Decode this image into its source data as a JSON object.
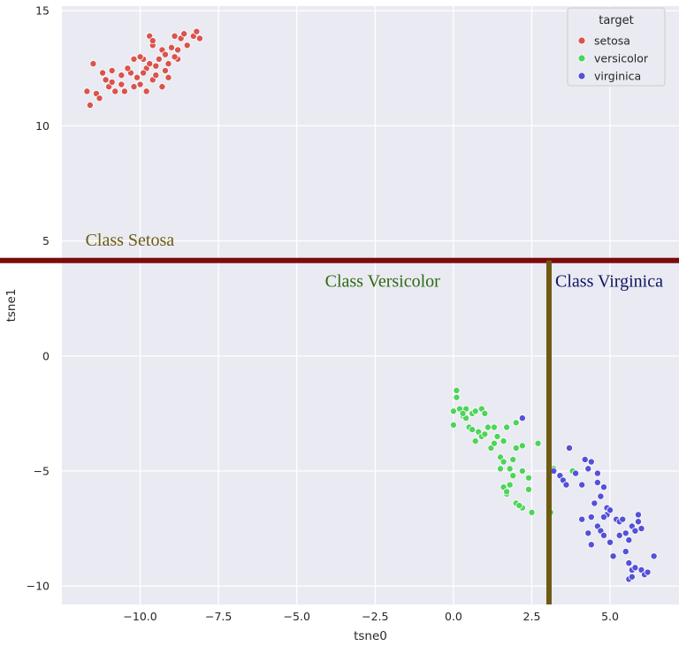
{
  "chart_data": {
    "type": "scatter",
    "xlabel": "tsne0",
    "ylabel": "tsne1",
    "xlim": [
      -12.5,
      7.2
    ],
    "ylim": [
      -10.8,
      15.2
    ],
    "xticks": [
      -10.0,
      -7.5,
      -5.0,
      -2.5,
      0.0,
      2.5,
      5.0
    ],
    "xtick_labels": [
      "−10.0",
      "−7.5",
      "−5.0",
      "−2.5",
      "0.0",
      "2.5",
      "5.0"
    ],
    "yticks": [
      -10,
      -5,
      0,
      5,
      10,
      15
    ],
    "ytick_labels": [
      "−10",
      "−5",
      "0",
      "5",
      "10",
      "15"
    ],
    "grid": true,
    "legend": {
      "title": "target",
      "position": "top-right",
      "entries": [
        "setosa",
        "versicolor",
        "virginica"
      ]
    },
    "series": [
      {
        "name": "setosa",
        "color": "#d9544d",
        "points": [
          [
            -11.6,
            10.9
          ],
          [
            -11.7,
            11.5
          ],
          [
            -11.4,
            11.4
          ],
          [
            -11.3,
            11.2
          ],
          [
            -11.1,
            12.0
          ],
          [
            -11.5,
            12.7
          ],
          [
            -11.2,
            12.3
          ],
          [
            -11.0,
            11.7
          ],
          [
            -10.9,
            12.4
          ],
          [
            -10.8,
            11.5
          ],
          [
            -10.6,
            11.8
          ],
          [
            -10.5,
            11.5
          ],
          [
            -10.3,
            12.3
          ],
          [
            -10.2,
            11.7
          ],
          [
            -10.1,
            12.1
          ],
          [
            -10.2,
            12.9
          ],
          [
            -10.0,
            11.8
          ],
          [
            -9.9,
            12.9
          ],
          [
            -9.8,
            12.5
          ],
          [
            -9.7,
            12.7
          ],
          [
            -9.8,
            11.5
          ],
          [
            -9.6,
            12.0
          ],
          [
            -9.5,
            12.6
          ],
          [
            -9.4,
            12.9
          ],
          [
            -9.6,
            13.5
          ],
          [
            -9.7,
            13.9
          ],
          [
            -9.6,
            13.7
          ],
          [
            -9.3,
            13.3
          ],
          [
            -9.2,
            12.4
          ],
          [
            -9.1,
            12.7
          ],
          [
            -9.2,
            13.1
          ],
          [
            -9.0,
            13.4
          ],
          [
            -8.9,
            13.9
          ],
          [
            -8.8,
            13.3
          ],
          [
            -8.7,
            13.8
          ],
          [
            -8.6,
            14.0
          ],
          [
            -8.5,
            13.5
          ],
          [
            -8.3,
            13.9
          ],
          [
            -8.2,
            14.1
          ],
          [
            -8.1,
            13.8
          ],
          [
            -9.1,
            12.1
          ],
          [
            -10.4,
            12.5
          ],
          [
            -10.6,
            12.2
          ],
          [
            -9.5,
            12.2
          ],
          [
            -8.8,
            12.9
          ],
          [
            -10.0,
            13.0
          ],
          [
            -9.3,
            11.7
          ],
          [
            -10.9,
            11.9
          ],
          [
            -9.9,
            12.3
          ],
          [
            -8.9,
            13.0
          ]
        ]
      },
      {
        "name": "versicolor",
        "color": "#4ed45a",
        "points": [
          [
            0.1,
            -1.5
          ],
          [
            0.1,
            -1.8
          ],
          [
            0.0,
            -2.4
          ],
          [
            0.2,
            -2.3
          ],
          [
            0.4,
            -2.3
          ],
          [
            0.3,
            -2.6
          ],
          [
            0.6,
            -2.5
          ],
          [
            0.7,
            -2.4
          ],
          [
            0.9,
            -2.3
          ],
          [
            1.0,
            -2.5
          ],
          [
            0.0,
            -3.0
          ],
          [
            0.5,
            -3.1
          ],
          [
            0.6,
            -3.2
          ],
          [
            0.8,
            -3.3
          ],
          [
            0.9,
            -3.5
          ],
          [
            1.1,
            -3.1
          ],
          [
            1.3,
            -3.1
          ],
          [
            1.0,
            -3.4
          ],
          [
            1.4,
            -3.5
          ],
          [
            1.6,
            -3.7
          ],
          [
            1.7,
            -3.1
          ],
          [
            2.0,
            -2.9
          ],
          [
            0.4,
            -2.7
          ],
          [
            0.7,
            -3.7
          ],
          [
            1.2,
            -4.0
          ],
          [
            1.5,
            -4.4
          ],
          [
            1.6,
            -4.6
          ],
          [
            1.9,
            -4.5
          ],
          [
            2.2,
            -3.9
          ],
          [
            2.7,
            -3.8
          ],
          [
            1.5,
            -4.9
          ],
          [
            1.9,
            -5.2
          ],
          [
            2.2,
            -5.0
          ],
          [
            2.4,
            -5.3
          ],
          [
            1.6,
            -5.7
          ],
          [
            1.8,
            -5.6
          ],
          [
            1.7,
            -6.0
          ],
          [
            2.0,
            -6.4
          ],
          [
            2.2,
            -6.6
          ],
          [
            2.4,
            -5.8
          ],
          [
            2.1,
            -6.5
          ],
          [
            2.5,
            -6.8
          ],
          [
            3.1,
            -6.8
          ],
          [
            1.3,
            -3.8
          ],
          [
            0.3,
            -2.5
          ],
          [
            1.8,
            -4.9
          ],
          [
            2.0,
            -4.0
          ],
          [
            3.8,
            -5.0
          ],
          [
            3.2,
            -4.9
          ],
          [
            1.7,
            -5.9
          ]
        ]
      },
      {
        "name": "virginica",
        "color": "#5451d6",
        "points": [
          [
            2.2,
            -2.7
          ],
          [
            3.2,
            -5.0
          ],
          [
            3.4,
            -5.2
          ],
          [
            3.5,
            -5.4
          ],
          [
            3.7,
            -4.0
          ],
          [
            3.6,
            -5.6
          ],
          [
            3.9,
            -5.1
          ],
          [
            4.1,
            -5.6
          ],
          [
            4.2,
            -4.5
          ],
          [
            4.4,
            -4.6
          ],
          [
            4.3,
            -4.9
          ],
          [
            4.6,
            -5.1
          ],
          [
            4.6,
            -5.5
          ],
          [
            4.8,
            -5.7
          ],
          [
            4.7,
            -6.1
          ],
          [
            4.1,
            -7.1
          ],
          [
            4.4,
            -7.0
          ],
          [
            4.5,
            -6.4
          ],
          [
            4.6,
            -7.4
          ],
          [
            4.7,
            -7.6
          ],
          [
            4.9,
            -6.6
          ],
          [
            4.9,
            -6.9
          ],
          [
            5.0,
            -6.7
          ],
          [
            5.2,
            -7.1
          ],
          [
            5.3,
            -7.2
          ],
          [
            5.4,
            -7.1
          ],
          [
            5.5,
            -7.7
          ],
          [
            5.6,
            -8.0
          ],
          [
            5.7,
            -7.4
          ],
          [
            5.8,
            -7.6
          ],
          [
            5.9,
            -7.2
          ],
          [
            5.9,
            -6.9
          ],
          [
            6.0,
            -7.5
          ],
          [
            4.3,
            -7.7
          ],
          [
            4.8,
            -7.8
          ],
          [
            5.0,
            -8.1
          ],
          [
            5.1,
            -8.7
          ],
          [
            5.5,
            -8.5
          ],
          [
            5.6,
            -9.0
          ],
          [
            5.7,
            -9.3
          ],
          [
            5.8,
            -9.2
          ],
          [
            6.0,
            -9.3
          ],
          [
            6.1,
            -9.5
          ],
          [
            6.2,
            -9.4
          ],
          [
            5.6,
            -9.7
          ],
          [
            5.7,
            -9.6
          ],
          [
            6.4,
            -8.7
          ],
          [
            4.8,
            -7.0
          ],
          [
            5.3,
            -7.8
          ],
          [
            4.4,
            -8.2
          ]
        ]
      }
    ],
    "annotations": [
      {
        "label": "Class  Setosa",
        "color": "#6b5d12",
        "anchor": [
          -11.75,
          4.8
        ]
      },
      {
        "label": "Class  Versicolor",
        "color": "#2f6a10",
        "anchor": [
          -4.1,
          3.0
        ]
      },
      {
        "label": "Class  Virginica",
        "color": "#0d1560",
        "anchor": [
          3.25,
          3.0
        ]
      }
    ],
    "boundaries": [
      {
        "orientation": "horizontal",
        "value": 4.15,
        "color": "#7a0c0c"
      },
      {
        "orientation": "vertical",
        "value": 3.05,
        "from": 4.15,
        "color": "#6e5a12"
      }
    ]
  }
}
